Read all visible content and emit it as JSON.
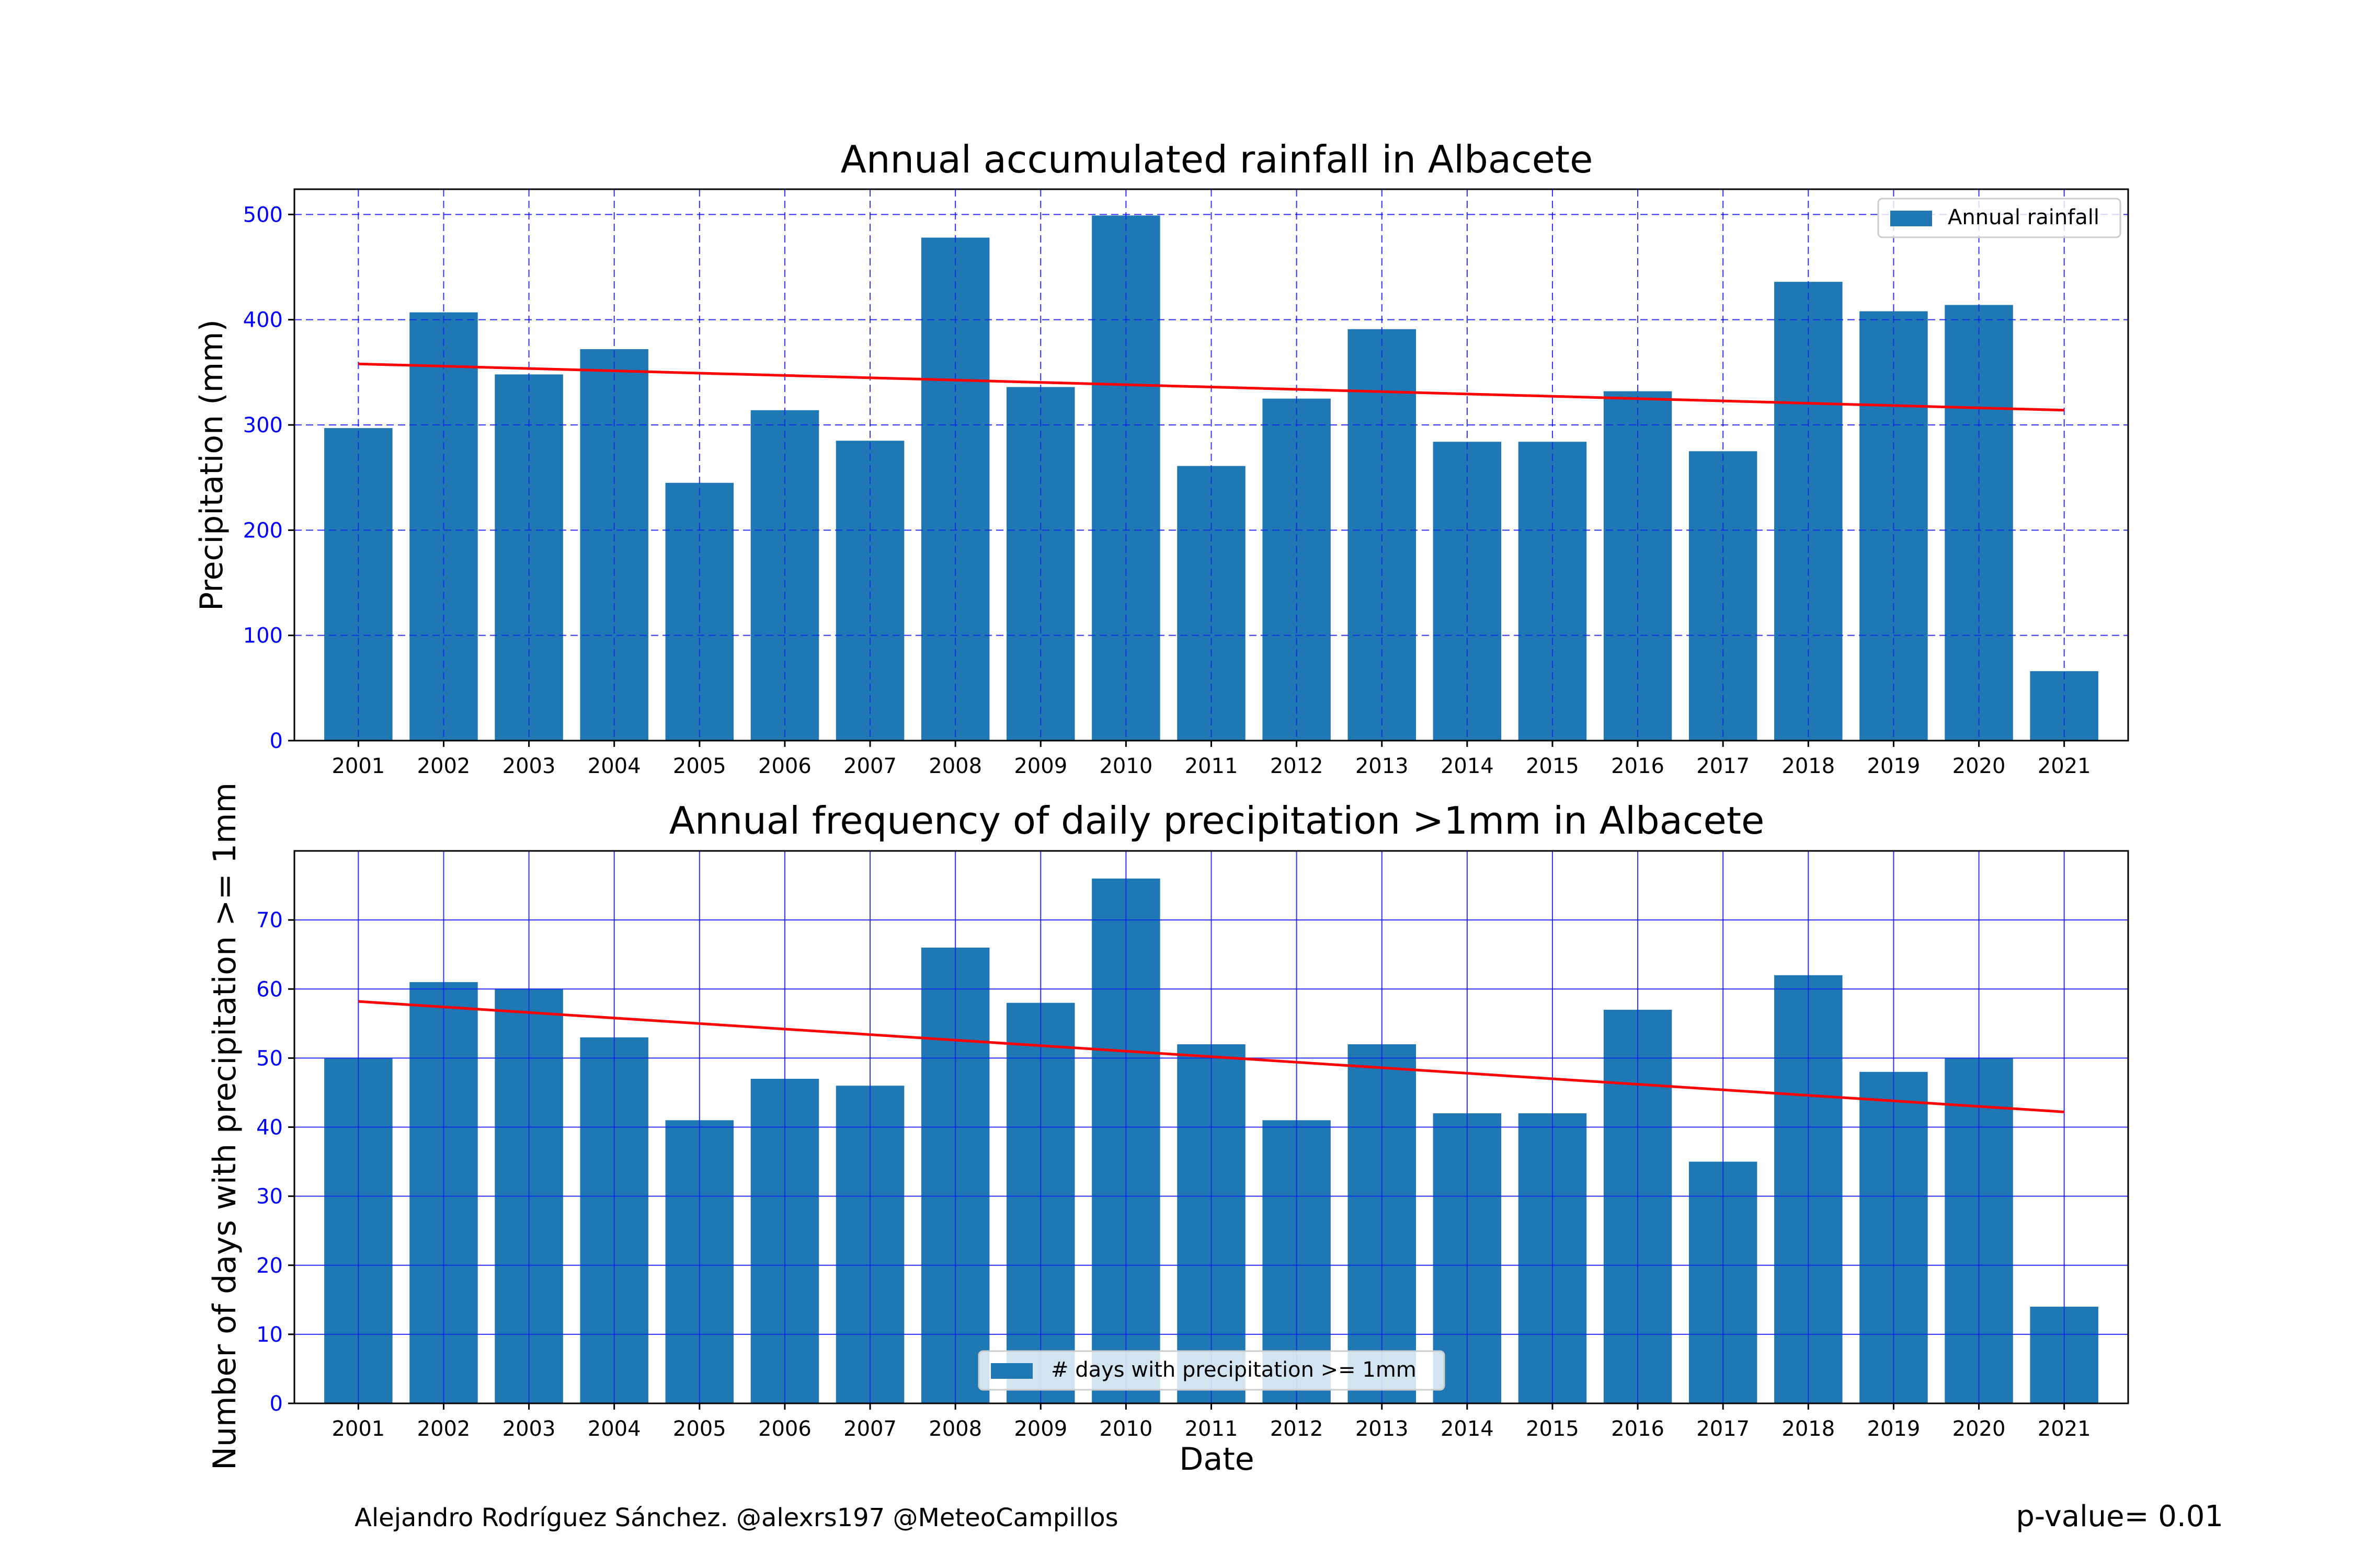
{
  "chart_data": [
    {
      "type": "bar",
      "title": "Annual accumulated rainfall in Albacete",
      "xlabel": "",
      "ylabel": "Precipitation (mm)",
      "categories": [
        "2001",
        "2002",
        "2003",
        "2004",
        "2005",
        "2006",
        "2007",
        "2008",
        "2009",
        "2010",
        "2011",
        "2012",
        "2013",
        "2014",
        "2015",
        "2016",
        "2017",
        "2018",
        "2019",
        "2020",
        "2021"
      ],
      "series": [
        {
          "name": "Annual rainfall",
          "values": [
            297,
            407,
            348,
            372,
            245,
            314,
            285,
            478,
            336,
            499,
            261,
            325,
            391,
            284,
            284,
            332,
            275,
            436,
            408,
            414,
            66
          ],
          "color": "#1f77b4"
        }
      ],
      "trend": {
        "start": 358,
        "end": 314,
        "color": "#ff0000"
      },
      "yticks": [
        0,
        100,
        200,
        300,
        400,
        500
      ],
      "ylim": [
        0,
        524
      ],
      "grid": true,
      "grid_style": "dashed",
      "legend_position": "top-right"
    },
    {
      "type": "bar",
      "title": "Annual frequency of daily precipitation >1mm in Albacete",
      "xlabel": "Date",
      "ylabel": "Number of days with precipitation >= 1mm",
      "categories": [
        "2001",
        "2002",
        "2003",
        "2004",
        "2005",
        "2006",
        "2007",
        "2008",
        "2009",
        "2010",
        "2011",
        "2012",
        "2013",
        "2014",
        "2015",
        "2016",
        "2017",
        "2018",
        "2019",
        "2020",
        "2021"
      ],
      "series": [
        {
          "name": "# days with precipitation >= 1mm",
          "values": [
            50,
            61,
            60,
            53,
            41,
            47,
            46,
            66,
            58,
            76,
            52,
            41,
            52,
            42,
            42,
            57,
            35,
            62,
            48,
            50,
            14
          ],
          "color": "#1f77b4"
        }
      ],
      "trend": {
        "start": 58.2,
        "end": 42.2,
        "color": "#ff0000"
      },
      "yticks": [
        0,
        10,
        20,
        30,
        40,
        50,
        60,
        70
      ],
      "ylim": [
        0,
        80
      ],
      "grid": true,
      "grid_style": "solid",
      "legend_position": "bottom-center"
    }
  ],
  "footer": {
    "credit": "Alejandro Rodríguez Sánchez. @alexrs197 @MeteoCampillos",
    "pvalue": "p-value= 0.01"
  },
  "colors": {
    "bar": "#1f77b4",
    "trend": "#ff0000",
    "grid": "#0000ff",
    "ytick_label": "#0000ff"
  }
}
